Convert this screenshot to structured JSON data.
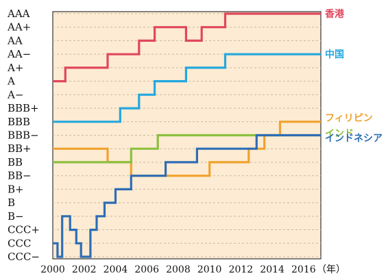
{
  "chart_data": {
    "type": "line",
    "title": "",
    "xlabel": "",
    "ylabel": "",
    "x_unit_label": "（年）",
    "x_ticks": [
      2000,
      2002,
      2004,
      2006,
      2008,
      2010,
      2012,
      2014,
      2016
    ],
    "xlim": [
      2000,
      2017.1
    ],
    "y_categories": [
      "CCC−",
      "CCC",
      "CCC+",
      "B−",
      "B",
      "B+",
      "BB−",
      "BB",
      "BB+",
      "BBB−",
      "BBB",
      "BBB+",
      "A−",
      "A",
      "A+",
      "AA−",
      "AA",
      "AA+",
      "AAA"
    ],
    "grid": true,
    "legend": "labels at right end of each line",
    "series": [
      {
        "name": "香港",
        "color": "#e0475c",
        "points": [
          [
            2000,
            "A"
          ],
          [
            2000.8,
            "A"
          ],
          [
            2000.8,
            "A+"
          ],
          [
            2003.5,
            "A+"
          ],
          [
            2003.5,
            "AA−"
          ],
          [
            2005.5,
            "AA−"
          ],
          [
            2005.5,
            "AA"
          ],
          [
            2006.5,
            "AA"
          ],
          [
            2006.5,
            "AA+"
          ],
          [
            2008.5,
            "AA+"
          ],
          [
            2008.5,
            "AA"
          ],
          [
            2009.5,
            "AA"
          ],
          [
            2009.5,
            "AA+"
          ],
          [
            2011.0,
            "AA+"
          ],
          [
            2011.0,
            "AAA"
          ],
          [
            2017.1,
            "AAA"
          ]
        ]
      },
      {
        "name": "中国",
        "color": "#23a8de",
        "points": [
          [
            2000,
            "BBB"
          ],
          [
            2004.3,
            "BBB"
          ],
          [
            2004.3,
            "BBB+"
          ],
          [
            2005.5,
            "BBB+"
          ],
          [
            2005.5,
            "A−"
          ],
          [
            2006.5,
            "A−"
          ],
          [
            2006.5,
            "A"
          ],
          [
            2008.5,
            "A"
          ],
          [
            2008.5,
            "A+"
          ],
          [
            2011.0,
            "A+"
          ],
          [
            2011.0,
            "AA−"
          ],
          [
            2017.1,
            "AA−"
          ]
        ]
      },
      {
        "name": "フィリピン",
        "color": "#f0a22e",
        "points": [
          [
            2000,
            "BB+"
          ],
          [
            2003.5,
            "BB+"
          ],
          [
            2003.5,
            "BB"
          ],
          [
            2005.0,
            "BB"
          ],
          [
            2005.0,
            "BB−"
          ],
          [
            2010.0,
            "BB−"
          ],
          [
            2010.0,
            "BB"
          ],
          [
            2012.5,
            "BB"
          ],
          [
            2012.5,
            "BB+"
          ],
          [
            2013.5,
            "BB+"
          ],
          [
            2013.5,
            "BBB−"
          ],
          [
            2014.5,
            "BBB−"
          ],
          [
            2014.5,
            "BBB"
          ],
          [
            2017.1,
            "BBB"
          ]
        ]
      },
      {
        "name": "インド",
        "color": "#8cbf3f",
        "points": [
          [
            2000,
            "BB"
          ],
          [
            2005.0,
            "BB"
          ],
          [
            2005.0,
            "BB+"
          ],
          [
            2006.7,
            "BB+"
          ],
          [
            2006.7,
            "BBB−"
          ],
          [
            2017.1,
            "BBB−"
          ]
        ]
      },
      {
        "name": "インドネシア",
        "color": "#2d6db5",
        "points": [
          [
            2000,
            "CCC"
          ],
          [
            2000.3,
            "CCC"
          ],
          [
            2000.3,
            "CCC−"
          ],
          [
            2000.6,
            "CCC−"
          ],
          [
            2000.6,
            "B−"
          ],
          [
            2001.1,
            "B−"
          ],
          [
            2001.1,
            "CCC+"
          ],
          [
            2001.5,
            "CCC+"
          ],
          [
            2001.5,
            "CCC"
          ],
          [
            2001.8,
            "CCC"
          ],
          [
            2001.8,
            "CCC−"
          ],
          [
            2002.4,
            "CCC−"
          ],
          [
            2002.4,
            "CCC+"
          ],
          [
            2002.8,
            "CCC+"
          ],
          [
            2002.8,
            "B−"
          ],
          [
            2003.3,
            "B−"
          ],
          [
            2003.3,
            "B"
          ],
          [
            2004.0,
            "B"
          ],
          [
            2004.0,
            "B+"
          ],
          [
            2005.0,
            "B+"
          ],
          [
            2005.0,
            "BB−"
          ],
          [
            2007.2,
            "BB−"
          ],
          [
            2007.2,
            "BB"
          ],
          [
            2009.2,
            "BB"
          ],
          [
            2009.2,
            "BB+"
          ],
          [
            2013.0,
            "BB+"
          ],
          [
            2013.0,
            "BBB−"
          ],
          [
            2017.1,
            "BBB−"
          ]
        ]
      }
    ]
  }
}
